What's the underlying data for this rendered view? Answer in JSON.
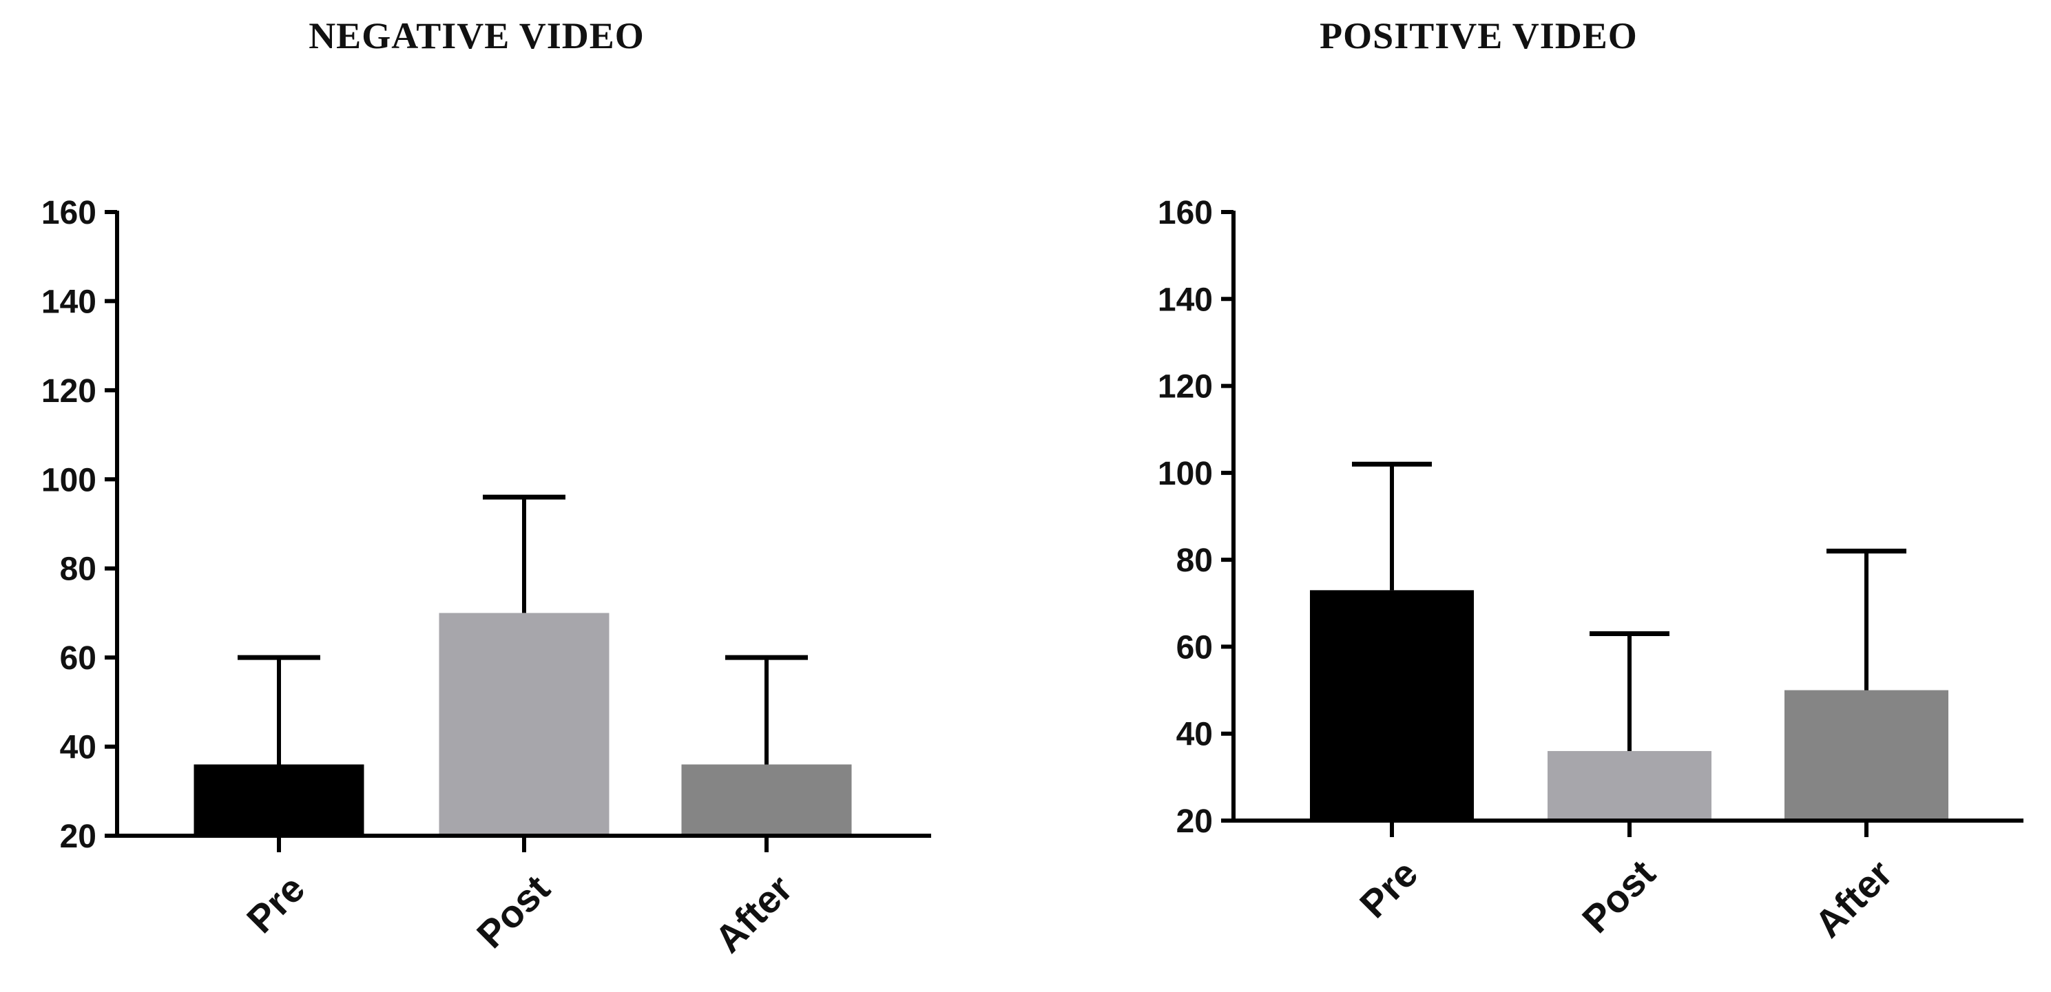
{
  "chart_data": [
    {
      "type": "bar",
      "title": "NEGATIVE VIDEO",
      "xlabel": "",
      "ylabel": "",
      "categories": [
        "Pre",
        "Post",
        "After"
      ],
      "values": [
        36,
        70,
        36
      ],
      "error_upper": [
        60,
        96,
        60
      ],
      "bar_colors": [
        "#000000",
        "#a7a6ab",
        "#858585"
      ],
      "ylim": [
        20,
        160
      ],
      "yticks": [
        "20",
        "40",
        "60",
        "80",
        "100",
        "120",
        "140",
        "160"
      ],
      "grid": false,
      "legend": "none"
    },
    {
      "type": "bar",
      "title": "POSITIVE VIDEO",
      "xlabel": "",
      "ylabel": "",
      "categories": [
        "Pre",
        "Post",
        "After"
      ],
      "values": [
        73,
        36,
        50
      ],
      "error_upper": [
        102,
        63,
        82
      ],
      "bar_colors": [
        "#000000",
        "#a7a6ab",
        "#858585"
      ],
      "ylim": [
        20,
        160
      ],
      "yticks": [
        "20",
        "40",
        "60",
        "80",
        "100",
        "120",
        "140",
        "160"
      ],
      "grid": false,
      "legend": "none"
    }
  ]
}
